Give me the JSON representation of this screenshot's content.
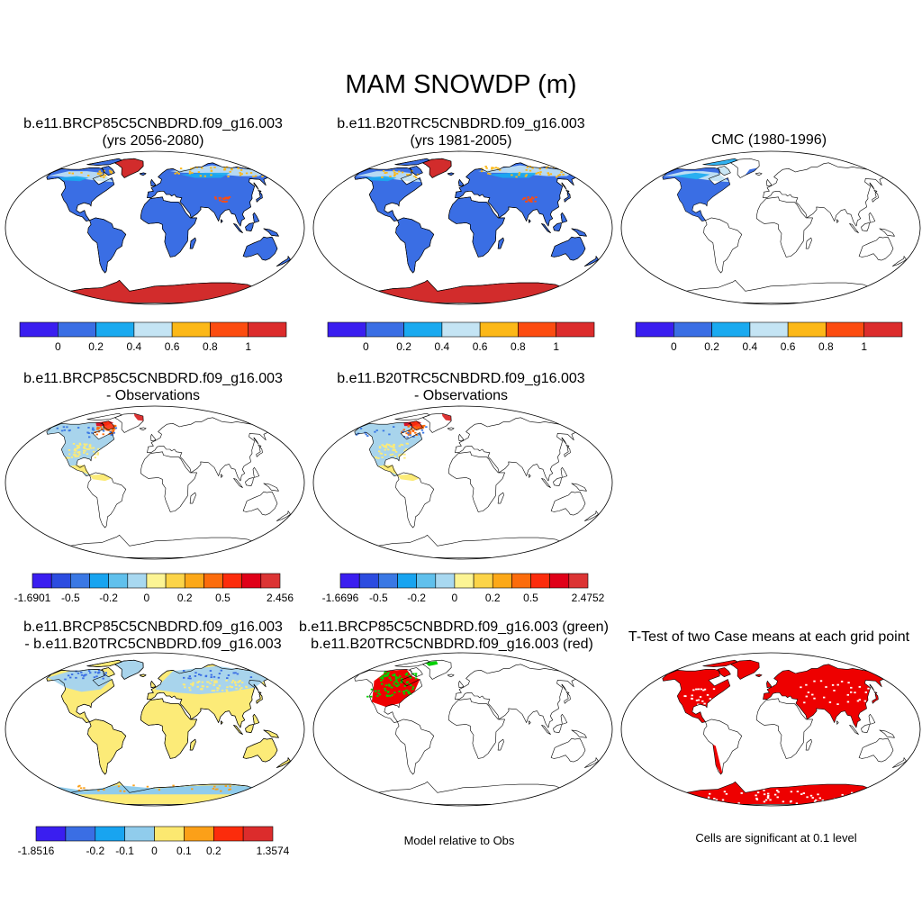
{
  "figure": {
    "title": "MAM SNOWDP (m)"
  },
  "colors": {
    "seq": [
      "#3a1ef0",
      "#3a6ee4",
      "#1aaaf0",
      "#c4e4f4",
      "#fcb818",
      "#fc4c10",
      "#dc2c2c"
    ],
    "diff": [
      "#3a1ef0",
      "#2c4ce0",
      "#3a78e4",
      "#18a4f0",
      "#60c0ec",
      "#a8d8f0",
      "#fcf494",
      "#fcd448",
      "#fca818",
      "#fc6c0c",
      "#fc2c0c",
      "#e00018",
      "#dc3434"
    ],
    "diff3": [
      "#3a1ef0",
      "#3a6ee4",
      "#18a4f0",
      "#90ccec",
      "#fce870",
      "#fca018",
      "#fc2c0c",
      "#dc2c2c"
    ],
    "land": "#3a6ee4",
    "antarctica": "#d22c2c",
    "yellow": "#fceb78",
    "lightblue": "#a8d4ec",
    "green": "#00d000",
    "red": "#ee0000"
  },
  "panels": [
    {
      "id": "p1",
      "title1": "b.e11.BRCP85C5CNBDRD.f09_g16.003",
      "title2": "(yrs 2056-2080)",
      "colorbar": [
        "0",
        "0.2",
        "0.4",
        "0.6",
        "0.8",
        "1"
      ]
    },
    {
      "id": "p2",
      "title1": "b.e11.B20TRC5CNBDRD.f09_g16.003",
      "title2": "(yrs 1981-2005)",
      "colorbar": [
        "0",
        "0.2",
        "0.4",
        "0.6",
        "0.8",
        "1"
      ]
    },
    {
      "id": "p3",
      "title1": "CMC (1980-1996)",
      "title2": "",
      "colorbar": [
        "0",
        "0.2",
        "0.4",
        "0.6",
        "0.8",
        "1"
      ]
    },
    {
      "id": "p4",
      "title1": "b.e11.BRCP85C5CNBDRD.f09_g16.003",
      "title2": "- Observations",
      "colorbar": [
        "-1.6901",
        "-0.5",
        "-0.2",
        "0",
        "0.2",
        "0.5",
        "2.456"
      ]
    },
    {
      "id": "p5",
      "title1": "b.e11.B20TRC5CNBDRD.f09_g16.003",
      "title2": "- Observations",
      "colorbar": [
        "-1.6696",
        "-0.5",
        "-0.2",
        "0",
        "0.2",
        "0.5",
        "2.4752"
      ]
    },
    {
      "id": "p6",
      "title1": "b.e11.BRCP85C5CNBDRD.f09_g16.003",
      "title2": "- b.e11.B20TRC5CNBDRD.f09_g16.003",
      "colorbar": [
        "-1.8516",
        "-0.2",
        "-0.1",
        "0",
        "0.1",
        "0.2",
        "1.3574"
      ]
    },
    {
      "id": "p7",
      "title1": "b.e11.BRCP85C5CNBDRD.f09_g16.003 (green)",
      "title2": "b.e11.B20TRC5CNBDRD.f09_g16.003 (red)",
      "note": "Model relative to Obs"
    },
    {
      "id": "p8",
      "title1": "T-Test of two Case means at each grid point",
      "title2": "",
      "note": "Cells are significant at 0.1 level"
    }
  ]
}
